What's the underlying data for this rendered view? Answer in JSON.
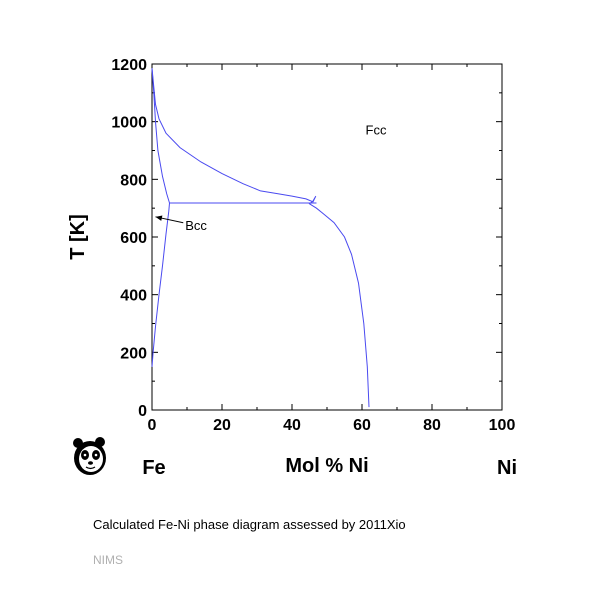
{
  "chart_data": {
    "type": "line",
    "title": "",
    "xlabel": "Mol % Ni",
    "ylabel": "T [K]",
    "x_end_labels": {
      "left": "Fe",
      "right": "Ni"
    },
    "xlim": [
      0,
      100
    ],
    "ylim": [
      0,
      1200
    ],
    "xticks": [
      "0",
      "20",
      "40",
      "60",
      "80",
      "100"
    ],
    "yticks": [
      "0",
      "200",
      "400",
      "600",
      "800",
      "1000",
      "1200"
    ],
    "grid": false,
    "line_color": "#4a4af0",
    "regions": [
      {
        "label": "Fcc",
        "x": 61,
        "y": 955
      },
      {
        "label": "Bcc",
        "x": 9.5,
        "y": 625,
        "arrow_to": {
          "x": 1,
          "y": 670
        }
      }
    ],
    "series": [
      {
        "points": [
          [
            0,
            1185
          ],
          [
            0.5,
            1120
          ],
          [
            1,
            1060
          ],
          [
            2,
            1010
          ],
          [
            4,
            960
          ],
          [
            8,
            910
          ],
          [
            14,
            860
          ],
          [
            20,
            820
          ],
          [
            26,
            785
          ],
          [
            31,
            760
          ],
          [
            36,
            750
          ],
          [
            40,
            742
          ],
          [
            44,
            732
          ],
          [
            46,
            722
          ],
          [
            46.8,
            742
          ],
          [
            46,
            725
          ],
          [
            45,
            715
          ],
          [
            47,
            700
          ],
          [
            49,
            680
          ],
          [
            52,
            650
          ],
          [
            55,
            600
          ],
          [
            57,
            540
          ],
          [
            59,
            440
          ],
          [
            60.5,
            300
          ],
          [
            61.5,
            150
          ],
          [
            62,
            10
          ]
        ]
      },
      {
        "points": [
          [
            0,
            1185
          ],
          [
            0.5,
            1100
          ],
          [
            1,
            1000
          ],
          [
            1.7,
            900
          ],
          [
            3,
            810
          ],
          [
            4.2,
            750
          ],
          [
            5,
            718
          ],
          [
            4.8,
            690
          ],
          [
            4,
            610
          ],
          [
            3,
            500
          ],
          [
            2,
            400
          ],
          [
            1,
            290
          ],
          [
            0.3,
            200
          ],
          [
            0,
            150
          ]
        ]
      },
      {
        "points": [
          [
            5,
            718
          ],
          [
            47,
            718
          ]
        ]
      }
    ]
  },
  "caption": "Calculated Fe-Ni phase diagram assessed by 2011Xio",
  "credit": "NIMS",
  "logo_icon": "panda-logo-icon"
}
